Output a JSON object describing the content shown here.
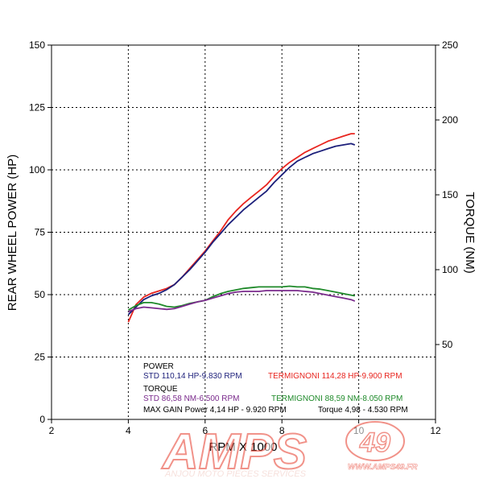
{
  "chart_data": {
    "type": "line",
    "xlabel": "RPM X 1000",
    "ylabel_left": "REAR WHEEL POWER (HP)",
    "ylabel_right": "TORQUE (NM)",
    "xlim": [
      2,
      12
    ],
    "ylim_left": [
      0,
      150
    ],
    "ylim_right": [
      0,
      250
    ],
    "x_ticks": [
      "2",
      "4",
      "6",
      "8",
      "10",
      "12"
    ],
    "y_ticks_left": [
      "0",
      "25",
      "50",
      "75",
      "100",
      "125",
      "150"
    ],
    "y_ticks_right": [
      "50",
      "100",
      "150",
      "200",
      "250"
    ],
    "grid": true,
    "series": [
      {
        "color": "#e8251f",
        "axis": "left",
        "x": [
          4.0,
          4.2,
          4.4,
          4.6,
          4.8,
          5.0,
          5.2,
          5.4,
          5.6,
          5.8,
          6.0,
          6.2,
          6.4,
          6.6,
          6.8,
          7.0,
          7.2,
          7.4,
          7.6,
          7.8,
          8.0,
          8.2,
          8.4,
          8.6,
          8.8,
          9.0,
          9.2,
          9.4,
          9.6,
          9.8,
          9.9
        ],
        "values": [
          39,
          46,
          49,
          50.5,
          51.5,
          52.5,
          54,
          57,
          60.5,
          64,
          67.5,
          71.5,
          75.5,
          80,
          83.5,
          86.5,
          89,
          91.5,
          94,
          97.5,
          100.5,
          103,
          105,
          107,
          108.5,
          110,
          111.5,
          112.5,
          113.5,
          114.5,
          114.5
        ]
      },
      {
        "color": "#1c1f7a",
        "axis": "left",
        "x": [
          4.0,
          4.2,
          4.4,
          4.6,
          4.8,
          5.0,
          5.2,
          5.4,
          5.6,
          5.8,
          6.0,
          6.2,
          6.4,
          6.6,
          6.8,
          7.0,
          7.2,
          7.4,
          7.6,
          7.8,
          8.0,
          8.2,
          8.4,
          8.6,
          8.8,
          9.0,
          9.2,
          9.4,
          9.6,
          9.8,
          9.9
        ],
        "values": [
          42,
          45,
          48,
          49.5,
          50.5,
          52,
          54,
          57,
          60,
          63.5,
          67,
          71,
          74.5,
          78,
          81,
          84,
          86.5,
          89,
          91.5,
          95,
          98,
          101,
          103.5,
          105,
          106.5,
          107.5,
          108.5,
          109.5,
          110,
          110.5,
          110
        ]
      },
      {
        "color": "#1f8a2a",
        "axis": "right",
        "x": [
          4.0,
          4.2,
          4.4,
          4.6,
          4.8,
          5.0,
          5.2,
          5.4,
          5.6,
          5.8,
          6.0,
          6.2,
          6.4,
          6.6,
          6.8,
          7.0,
          7.2,
          7.4,
          7.6,
          7.8,
          8.0,
          8.2,
          8.4,
          8.6,
          8.8,
          9.0,
          9.2,
          9.4,
          9.6,
          9.8,
          9.9
        ],
        "values": [
          73,
          76,
          78,
          78,
          77,
          75.5,
          75,
          76,
          77.5,
          78.5,
          79.5,
          82,
          84,
          85.5,
          86.5,
          87.5,
          88,
          88.5,
          88.5,
          88.5,
          88.5,
          89,
          88.5,
          88.5,
          87.5,
          87,
          86,
          85,
          84,
          83,
          82.5
        ]
      },
      {
        "color": "#7a2a8c",
        "axis": "right",
        "x": [
          4.0,
          4.2,
          4.4,
          4.6,
          4.8,
          5.0,
          5.2,
          5.4,
          5.6,
          5.8,
          6.0,
          6.2,
          6.4,
          6.6,
          6.8,
          7.0,
          7.2,
          7.4,
          7.6,
          7.8,
          8.0,
          8.2,
          8.4,
          8.6,
          8.8,
          9.0,
          9.2,
          9.4,
          9.6,
          9.8,
          9.9
        ],
        "values": [
          72,
          74,
          75,
          74.5,
          74,
          73.5,
          74,
          75.5,
          77,
          78.5,
          79.5,
          81,
          82.5,
          84,
          85,
          85.5,
          85.5,
          85.5,
          86,
          86,
          86,
          86,
          86,
          85.5,
          85,
          84,
          83,
          82,
          81,
          80,
          79
        ]
      }
    ],
    "legend": {
      "power_title": "POWER",
      "std_power": "STD 110,14 HP-9.830 RPM",
      "term_power": "TERMIGNONI 114,28 HP-9.900 RPM",
      "torque_title": "TORQUE",
      "std_torque": "STD 86,58 NM-6.500 RPM",
      "term_torque": "TERMIGNONI 88,59 NM-8.050 RPM",
      "max_gain_power": "MAX GAIN Power 4,14 HP - 9.920 RPM",
      "max_gain_torque": "Torque 4,98 - 4.530 RPM"
    },
    "colors": {
      "std_power": "#1c1f7a",
      "term_power": "#e8251f",
      "std_torque": "#7a2a8c",
      "term_torque": "#1f8a2a",
      "legend_text": "#000000"
    }
  },
  "watermark": {
    "logo_text": "AMPS",
    "logo_badge": "49",
    "tagline": "ANJOU MOTO PIÈCES SERVICES",
    "url": "WWW.AMPS49.FR"
  }
}
